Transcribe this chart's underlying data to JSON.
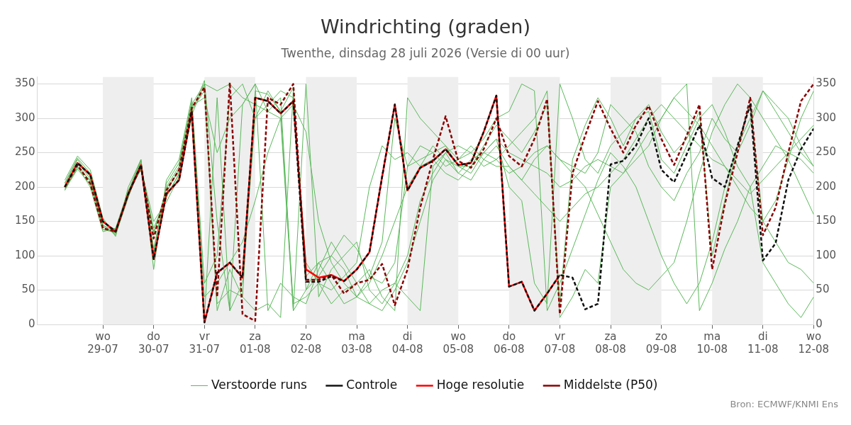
{
  "chart_data": {
    "type": "line",
    "title": "Windrichting (graden)",
    "subtitle": "Twenthe, dinsdag 28 juli 2026 (Versie di 00 uur)",
    "annotations": [
      "Bron: ECMWF/KNMI Ens"
    ],
    "x": [
      "2026-07-28T06:00",
      "2026-07-28T12:00",
      "2026-07-28T18:00",
      "2026-07-29T00:00",
      "2026-07-29T06:00",
      "2026-07-29T12:00",
      "2026-07-29T18:00",
      "2026-07-30T00:00",
      "2026-07-30T06:00",
      "2026-07-30T12:00",
      "2026-07-30T18:00",
      "2026-07-31T00:00",
      "2026-07-31T06:00",
      "2026-07-31T12:00",
      "2026-07-31T18:00",
      "2026-08-01T00:00",
      "2026-08-01T06:00",
      "2026-08-01T12:00",
      "2026-08-01T18:00",
      "2026-08-02T00:00",
      "2026-08-02T06:00",
      "2026-08-02T12:00",
      "2026-08-02T18:00",
      "2026-08-03T00:00",
      "2026-08-03T06:00",
      "2026-08-03T12:00",
      "2026-08-03T18:00",
      "2026-08-04T00:00",
      "2026-08-04T06:00",
      "2026-08-04T12:00",
      "2026-08-04T18:00",
      "2026-08-05T00:00",
      "2026-08-05T06:00",
      "2026-08-05T12:00",
      "2026-08-05T18:00",
      "2026-08-06T00:00",
      "2026-08-06T06:00",
      "2026-08-06T12:00",
      "2026-08-06T18:00",
      "2026-08-07T00:00",
      "2026-08-07T06:00",
      "2026-08-07T12:00",
      "2026-08-07T18:00",
      "2026-08-08T00:00",
      "2026-08-08T06:00",
      "2026-08-08T12:00",
      "2026-08-08T18:00",
      "2026-08-09T00:00",
      "2026-08-09T06:00",
      "2026-08-09T12:00",
      "2026-08-09T18:00",
      "2026-08-10T00:00",
      "2026-08-10T06:00",
      "2026-08-10T12:00",
      "2026-08-10T18:00",
      "2026-08-11T00:00",
      "2026-08-11T06:00",
      "2026-08-11T12:00",
      "2026-08-11T18:00",
      "2026-08-12T00:00"
    ],
    "xlim": [
      "2026-07-27T17:00",
      "2026-08-12T00:00"
    ],
    "xticks": [
      {
        "value": "2026-07-29",
        "label": "wo 29-07"
      },
      {
        "value": "2026-07-30",
        "label": "do 30-07"
      },
      {
        "value": "2026-07-31",
        "label": "vr 31-07"
      },
      {
        "value": "2026-08-01",
        "label": "za 01-08"
      },
      {
        "value": "2026-08-02",
        "label": "zo 02-08"
      },
      {
        "value": "2026-08-03",
        "label": "ma 03-08"
      },
      {
        "value": "2026-08-04",
        "label": "di 04-08"
      },
      {
        "value": "2026-08-05",
        "label": "wo 05-08"
      },
      {
        "value": "2026-08-06",
        "label": "do 06-08"
      },
      {
        "value": "2026-08-07",
        "label": "vr 07-08"
      },
      {
        "value": "2026-08-08",
        "label": "za 08-08"
      },
      {
        "value": "2026-08-09",
        "label": "zo 09-08"
      },
      {
        "value": "2026-08-10",
        "label": "ma 10-08"
      },
      {
        "value": "2026-08-11",
        "label": "di 11-08"
      },
      {
        "value": "2026-08-12",
        "label": "wo 12-08"
      }
    ],
    "ylim": [
      0,
      360
    ],
    "yticks": [
      0,
      50,
      100,
      150,
      200,
      250,
      300,
      350
    ],
    "y2lim": [
      0,
      360
    ],
    "y2ticks": [
      0,
      50,
      100,
      150,
      200,
      250,
      300,
      350
    ],
    "grid": "y",
    "legend": "bottom",
    "marker": "none",
    "bands": [
      {
        "axis": "x",
        "from": "2026-07-29",
        "to": "2026-07-30",
        "color": "#eeeeee"
      },
      {
        "axis": "x",
        "from": "2026-07-31",
        "to": "2026-08-01",
        "color": "#eeeeee"
      },
      {
        "axis": "x",
        "from": "2026-08-02",
        "to": "2026-08-03",
        "color": "#eeeeee"
      },
      {
        "axis": "x",
        "from": "2026-08-04",
        "to": "2026-08-05",
        "color": "#eeeeee"
      },
      {
        "axis": "x",
        "from": "2026-08-06",
        "to": "2026-08-07",
        "color": "#eeeeee"
      },
      {
        "axis": "x",
        "from": "2026-08-08",
        "to": "2026-08-09",
        "color": "#eeeeee"
      },
      {
        "axis": "x",
        "from": "2026-08-10",
        "to": "2026-08-11",
        "color": "#eeeeee"
      }
    ],
    "series": [
      {
        "name": "Verstoorde runs",
        "color": "#5cb85c",
        "line_style": "solid",
        "values": [
          205,
          240,
          215,
          145,
          130,
          185,
          235,
          110,
          200,
          230,
          320,
          350,
          20,
          80,
          40,
          340,
          335,
          310,
          345,
          50,
          90,
          60,
          30,
          40,
          70,
          120,
          300,
          230,
          240,
          250,
          260,
          230,
          230,
          260,
          290,
          270,
          250,
          280,
          320,
          30,
          240,
          290,
          330,
          300,
          260,
          300,
          320,
          280,
          250,
          270,
          310,
          100,
          180,
          260,
          320,
          150,
          180,
          240,
          300,
          340
        ]
      },
      {
        "color": "#5cb85c",
        "line_style": "solid",
        "values": [
          195,
          230,
          200,
          135,
          140,
          195,
          225,
          140,
          185,
          220,
          300,
          10,
          330,
          20,
          320,
          350,
          310,
          300,
          20,
          350,
          40,
          80,
          100,
          120,
          50,
          30,
          60,
          40,
          20,
          230,
          250,
          220,
          240,
          250,
          270,
          200,
          180,
          60,
          30,
          350,
          300,
          240,
          220,
          260,
          280,
          300,
          310,
          240,
          220,
          260,
          300,
          320,
          280,
          230,
          200,
          90,
          60,
          30,
          10,
          40
        ]
      },
      {
        "color": "#5cb85c",
        "line_style": "solid",
        "values": [
          210,
          245,
          225,
          155,
          128,
          200,
          240,
          80,
          210,
          240,
          330,
          60,
          100,
          330,
          350,
          300,
          320,
          340,
          330,
          90,
          60,
          50,
          70,
          90,
          200,
          260,
          240,
          250,
          230,
          260,
          240,
          220,
          210,
          240,
          260,
          230,
          210,
          240,
          260,
          240,
          230,
          220,
          250,
          320,
          300,
          280,
          230,
          200,
          180,
          220,
          250,
          300,
          270,
          250,
          290,
          340,
          320,
          300,
          260,
          230
        ]
      },
      {
        "color": "#5cb85c",
        "line_style": "solid",
        "values": [
          198,
          228,
          210,
          148,
          138,
          188,
          228,
          150,
          178,
          215,
          310,
          355,
          150,
          20,
          60,
          300,
          340,
          310,
          30,
          40,
          60,
          30,
          50,
          60,
          80,
          40,
          20,
          330,
          300,
          280,
          260,
          240,
          250,
          230,
          240,
          260,
          280,
          300,
          340,
          10,
          40,
          80,
          60,
          200,
          220,
          240,
          260,
          300,
          330,
          350,
          20,
          60,
          110,
          150,
          200,
          230,
          260,
          250,
          240,
          220
        ]
      },
      {
        "color": "#5cb85c",
        "line_style": "solid",
        "values": [
          202,
          236,
          212,
          142,
          132,
          192,
          238,
          100,
          192,
          226,
          318,
          330,
          250,
          300,
          320,
          350,
          20,
          60,
          40,
          30,
          80,
          120,
          90,
          60,
          30,
          20,
          50,
          90,
          150,
          210,
          240,
          230,
          220,
          250,
          270,
          250,
          240,
          230,
          220,
          200,
          210,
          230,
          240,
          230,
          220,
          250,
          280,
          300,
          330,
          310,
          290,
          260,
          230,
          200,
          170,
          150,
          120,
          90,
          80,
          60
        ]
      },
      {
        "color": "#5cb85c",
        "line_style": "solid",
        "values": [
          200,
          233,
          208,
          138,
          134,
          186,
          232,
          130,
          198,
          222,
          312,
          340,
          30,
          50,
          40,
          20,
          30,
          10,
          340,
          70,
          90,
          100,
          80,
          40,
          30,
          50,
          60,
          100,
          180,
          220,
          250,
          260,
          250,
          270,
          300,
          310,
          350,
          340,
          20,
          60,
          110,
          160,
          210,
          250,
          230,
          200,
          150,
          100,
          60,
          30,
          60,
          120,
          200,
          260,
          300,
          340,
          310,
          280,
          250,
          230
        ]
      },
      {
        "color": "#5cb85c",
        "line_style": "solid",
        "values": [
          206,
          242,
          220,
          150,
          133,
          194,
          240,
          105,
          205,
          235,
          325,
          40,
          60,
          90,
          120,
          180,
          250,
          300,
          320,
          280,
          150,
          90,
          60,
          40,
          60,
          100,
          150,
          200,
          230,
          240,
          220,
          210,
          230,
          250,
          240,
          220,
          230,
          250,
          260,
          240,
          220,
          200,
          160,
          120,
          80,
          60,
          50,
          70,
          90,
          150,
          220,
          280,
          320,
          350,
          330,
          300,
          270,
          240,
          200,
          160
        ]
      },
      {
        "color": "#5cb85c",
        "line_style": "solid",
        "values": [
          196,
          226,
          204,
          144,
          136,
          191,
          226,
          135,
          188,
          218,
          305,
          350,
          340,
          350,
          330,
          320,
          310,
          330,
          20,
          50,
          70,
          100,
          130,
          110,
          70,
          60,
          90,
          230,
          260,
          250,
          230,
          240,
          260,
          240,
          230,
          230,
          210,
          190,
          170,
          150,
          170,
          190,
          200,
          220,
          240,
          270,
          300,
          320,
          300,
          280,
          260,
          240,
          230,
          210,
          190,
          210,
          230,
          250,
          270,
          290
        ]
      },
      {
        "name": "Controle",
        "color": "#111111",
        "line_style": "dashed",
        "values": [
          200,
          235,
          218,
          150,
          135,
          190,
          232,
          95,
          190,
          210,
          310,
          3,
          75,
          90,
          68,
          330,
          325,
          307,
          325,
          62,
          62,
          70,
          63,
          80,
          105,
          215,
          320,
          195,
          228,
          238,
          255,
          232,
          235,
          280,
          333,
          55,
          62,
          20,
          45,
          72,
          68,
          22,
          30,
          233,
          238,
          260,
          300,
          225,
          207,
          248,
          290,
          213,
          200,
          260,
          320,
          93,
          118,
          210,
          255,
          285
        ]
      },
      {
        "name": "Hoge resolutie",
        "color": "#ff0000",
        "line_style": "solid",
        "values": [
          200,
          235,
          218,
          150,
          135,
          190,
          232,
          95,
          190,
          210,
          310,
          3,
          75,
          90,
          68,
          330,
          325,
          307,
          325,
          80,
          68,
          72,
          63,
          80,
          105,
          215,
          320,
          195,
          228,
          238,
          255,
          232,
          235,
          280,
          333,
          55,
          62,
          20,
          45,
          72,
          null,
          null,
          null,
          null,
          null,
          null,
          null,
          null,
          null,
          null,
          null,
          null,
          null,
          null,
          null,
          null,
          null,
          null,
          null,
          null
        ]
      },
      {
        "name": "Middelste (P50)",
        "color": "#8b0000",
        "line_style": "dashed",
        "values": [
          200,
          232,
          205,
          140,
          135,
          190,
          230,
          125,
          195,
          225,
          315,
          345,
          40,
          352,
          15,
          5,
          330,
          320,
          350,
          65,
          65,
          72,
          45,
          60,
          65,
          88,
          28,
          80,
          170,
          240,
          303,
          238,
          228,
          255,
          300,
          245,
          230,
          270,
          328,
          15,
          220,
          275,
          325,
          285,
          250,
          290,
          318,
          270,
          232,
          275,
          320,
          80,
          175,
          250,
          330,
          130,
          170,
          250,
          325,
          350
        ]
      }
    ]
  }
}
